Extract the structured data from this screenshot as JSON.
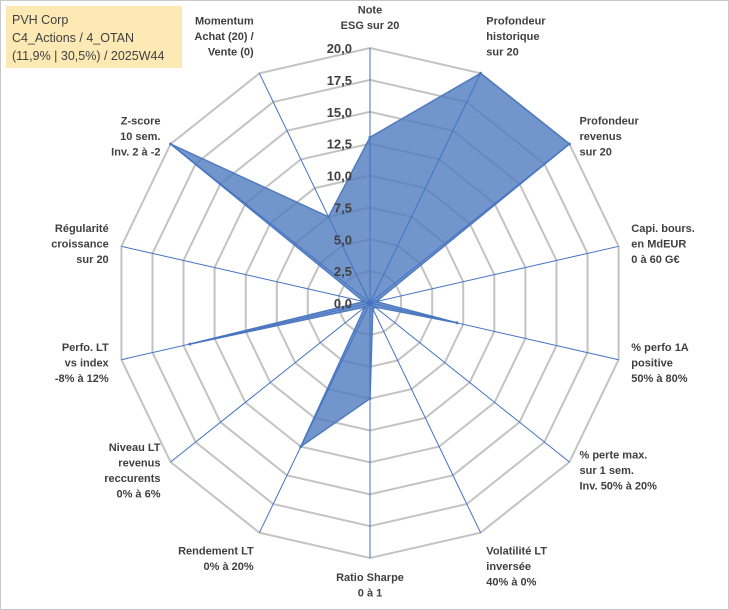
{
  "info": {
    "line1": "PVH Corp",
    "line2": "C4_Actions / 4_OTAN",
    "line3": "(11,9% | 30,5%) / 2025W44"
  },
  "chart_data": {
    "type": "radar",
    "r_min": 0,
    "r_max": 20,
    "ticks": [
      "0,0",
      "2,5",
      "5,0",
      "7,5",
      "10,0",
      "12,5",
      "15,0",
      "17,5",
      "20,0"
    ],
    "series_color": "#4f7bbf",
    "axes": [
      {
        "label": [
          "Note",
          "ESG sur 20"
        ],
        "value": 13
      },
      {
        "label": [
          "Profondeur",
          "historique",
          "sur 20"
        ],
        "value": 20
      },
      {
        "label": [
          "Profondeur",
          "revenus",
          "sur 20"
        ],
        "value": 20
      },
      {
        "label": [
          "Capi. bours.",
          "en MdEUR",
          "0 à 60 G€"
        ],
        "value": 0.5
      },
      {
        "label": [
          "% perfo 1A",
          "positive",
          "50% à 80%"
        ],
        "value": 7
      },
      {
        "label": [
          "% perte max.",
          "sur 1 sem.",
          "Inv. 50% à 20%"
        ],
        "value": 0.5
      },
      {
        "label": [
          "Volatilité LT",
          "inversée",
          "40% à 0%"
        ],
        "value": 0.5
      },
      {
        "label": [
          "Ratio Sharpe",
          "0 à 1"
        ],
        "value": 7.5
      },
      {
        "label": [
          "Rendement LT",
          "0% à 20%"
        ],
        "value": 12.5
      },
      {
        "label": [
          "Niveau LT",
          "revenus",
          "reccurents",
          "0% à 6%"
        ],
        "value": 0.5
      },
      {
        "label": [
          "Perfo. LT",
          "vs index",
          "-8% à 12%"
        ],
        "value": 14.5
      },
      {
        "label": [
          "Régularité",
          "croissance",
          "sur 20"
        ],
        "value": 0.5
      },
      {
        "label": [
          "Z-score",
          "10 sem.",
          "Inv. 2 à -2"
        ],
        "value": 20
      },
      {
        "label": [
          "Momentum",
          "Achat (20) /",
          "Vente (0)"
        ],
        "value": 7.5
      }
    ]
  }
}
